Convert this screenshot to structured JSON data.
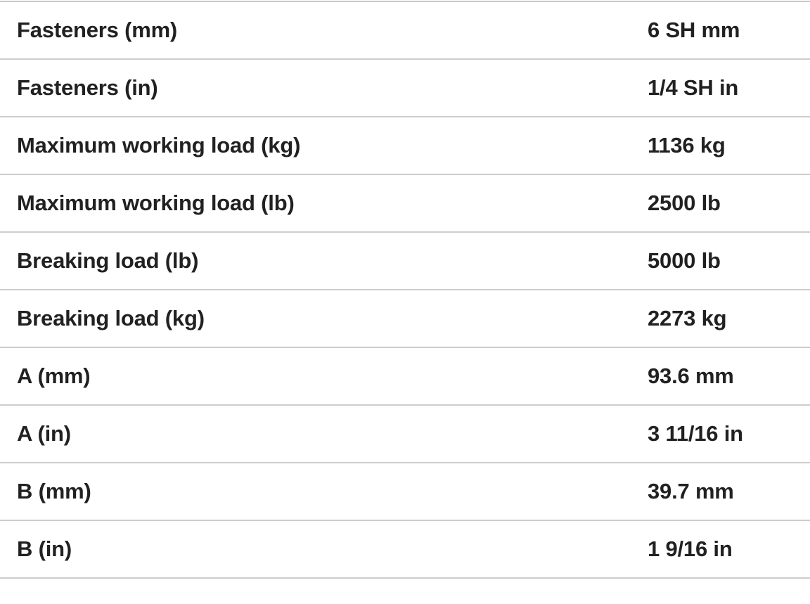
{
  "colors": {
    "background": "#ffffff",
    "text": "#212121",
    "divider": "#cdcdcd",
    "top_border": "#c9c9c9"
  },
  "spec_table": {
    "rows": [
      {
        "label": "Fasteners (mm)",
        "value": "6 SH mm"
      },
      {
        "label": "Fasteners (in)",
        "value": "1/4 SH in"
      },
      {
        "label": "Maximum working load (kg)",
        "value": "1136 kg"
      },
      {
        "label": "Maximum working load (lb)",
        "value": "2500 lb"
      },
      {
        "label": "Breaking load (lb)",
        "value": "5000 lb"
      },
      {
        "label": "Breaking load (kg)",
        "value": "2273 kg"
      },
      {
        "label": "A (mm)",
        "value": "93.6 mm"
      },
      {
        "label": "A (in)",
        "value": "3 11/16 in"
      },
      {
        "label": "B (mm)",
        "value": "39.7 mm"
      },
      {
        "label": "B (in)",
        "value": "1 9/16 in"
      }
    ]
  }
}
